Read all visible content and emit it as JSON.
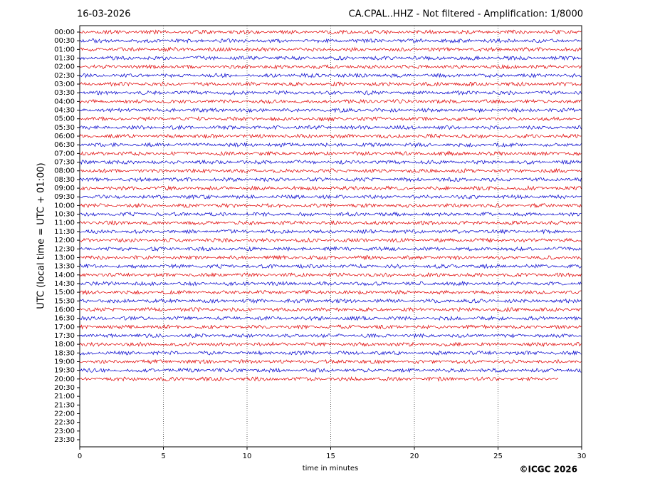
{
  "chart_data": {
    "type": "helicorder",
    "date": "16-03-2026",
    "title": "CA.CPAL..HHZ - Not filtered - Amplification: 1/8000",
    "ylabel": "UTC (local time = UTC + 01:00)",
    "xlabel": "time in minutes",
    "credit": "©ICGC 2026",
    "categories": [
      "00:00",
      "00:30",
      "01:00",
      "01:30",
      "02:00",
      "02:30",
      "03:00",
      "03:30",
      "04:00",
      "04:30",
      "05:00",
      "05:30",
      "06:00",
      "06:30",
      "07:00",
      "07:30",
      "08:00",
      "08:30",
      "09:00",
      "09:30",
      "10:00",
      "10:30",
      "11:00",
      "11:30",
      "12:00",
      "12:30",
      "13:00",
      "13:30",
      "14:00",
      "14:30",
      "15:00",
      "15:30",
      "16:00",
      "16:30",
      "17:00",
      "17:30",
      "18:00",
      "18:30",
      "19:00",
      "19:30",
      "20:00",
      "20:30",
      "21:00",
      "21:30",
      "22:00",
      "22:30",
      "23:00",
      "23:30"
    ],
    "values": [
      30,
      30,
      30,
      30,
      30,
      30,
      30,
      30,
      30,
      30,
      30,
      30,
      30,
      30,
      30,
      30,
      30,
      30,
      30,
      30,
      30,
      30,
      30,
      30,
      30,
      30,
      30,
      30,
      30,
      30,
      30,
      30,
      30,
      30,
      30,
      30,
      30,
      30,
      30,
      30,
      28.6,
      null,
      null,
      null,
      null,
      null,
      null,
      null
    ],
    "colors": [
      "#e00000",
      "#0000cc"
    ],
    "xlim": [
      0,
      30
    ],
    "xticks": [
      0,
      5,
      10,
      15,
      20,
      25,
      30
    ],
    "grid": true
  }
}
